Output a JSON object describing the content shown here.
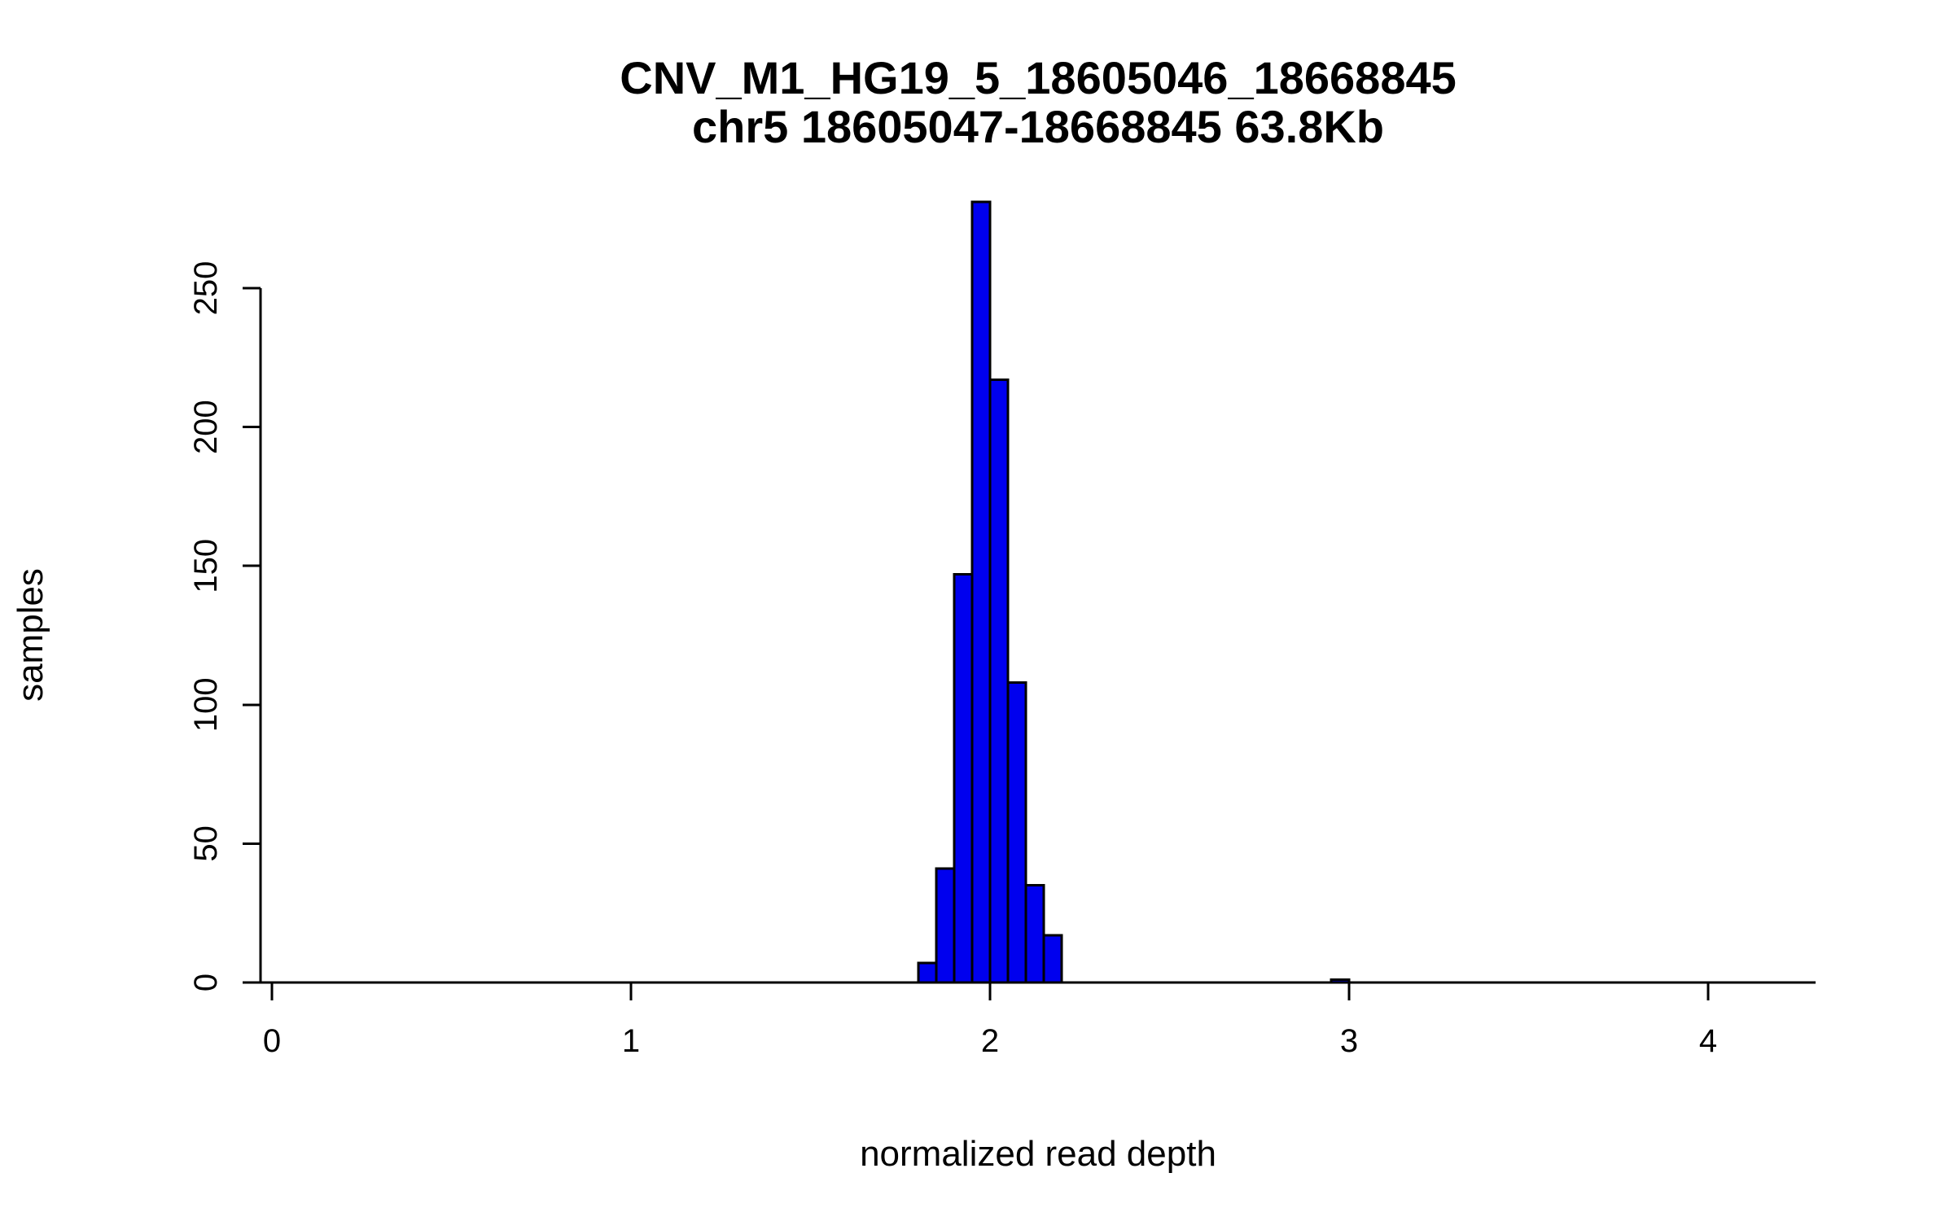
{
  "chart_data": {
    "type": "bar",
    "subtype": "histogram",
    "title": "CNV_M1_HG19_5_18605046_18668845",
    "subtitle": "chr5 18605047-18668845 63.8Kb",
    "xlabel": "normalized read depth",
    "ylabel": "samples",
    "bin_width": 0.05,
    "bins": [
      {
        "x": 1.8,
        "count": 7
      },
      {
        "x": 1.85,
        "count": 41
      },
      {
        "x": 1.9,
        "count": 147
      },
      {
        "x": 1.95,
        "count": 281
      },
      {
        "x": 2.0,
        "count": 217
      },
      {
        "x": 2.05,
        "count": 108
      },
      {
        "x": 2.1,
        "count": 35
      },
      {
        "x": 2.15,
        "count": 17
      },
      {
        "x": 2.95,
        "count": 1
      }
    ],
    "x_ticks": [
      0,
      1,
      2,
      3,
      4
    ],
    "y_ticks": [
      0,
      50,
      100,
      150,
      200,
      250
    ],
    "xlim": [
      -0.05,
      4.3
    ],
    "ylim": [
      0,
      281
    ],
    "grid": "off",
    "legend": "none",
    "bar_color": "#0000EE",
    "bar_border_color": "#000000",
    "axis_color": "#000000",
    "background_color": "#ffffff"
  }
}
